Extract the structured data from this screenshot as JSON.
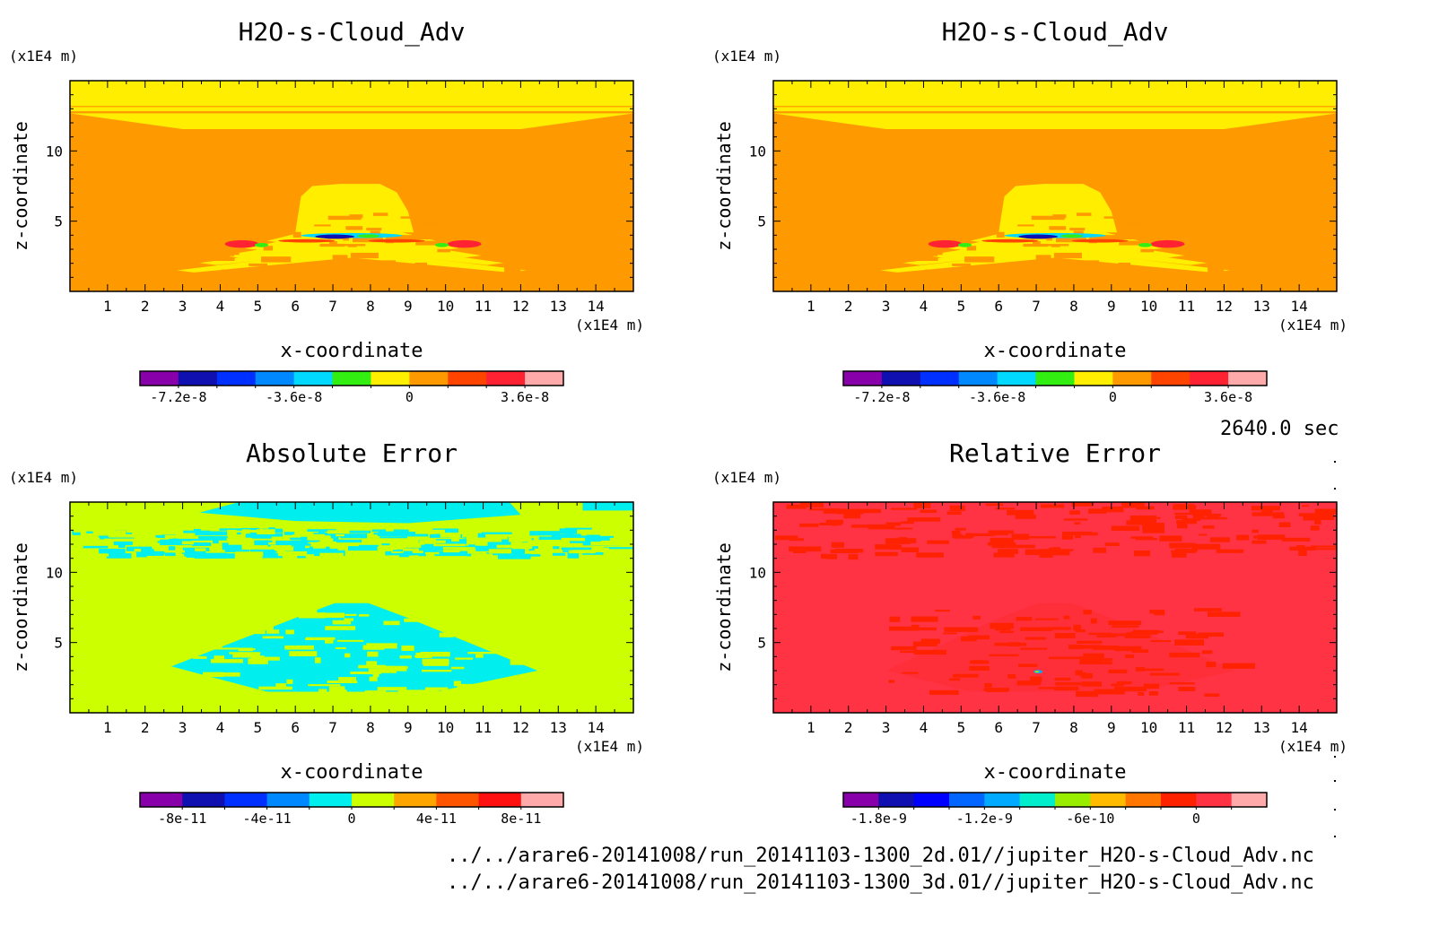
{
  "page": {
    "time_label": "2640.0 sec",
    "file_paths": [
      "../../arare6-20141008/run_20141103-1300_2d.01//jupiter_H2O-s-Cloud_Adv.nc",
      "../../arare6-20141008/run_20141103-1300_3d.01//jupiter_H2O-s-Cloud_Adv.nc"
    ]
  },
  "chart_data": [
    {
      "type": "heatmap",
      "title": "H2O-s-Cloud_Adv",
      "xlabel": "x-coordinate",
      "ylabel": "z-coordinate",
      "x_unit": "(x1E4 m)",
      "y_unit": "(x1E4 m)",
      "xlim": [
        0,
        15
      ],
      "ylim": [
        0,
        15
      ],
      "x_ticks": [
        1,
        2,
        3,
        4,
        5,
        6,
        7,
        8,
        9,
        10,
        11,
        12,
        13,
        14
      ],
      "y_ticks": [
        5,
        10
      ],
      "field": "cloud",
      "colorbar": {
        "colors": [
          "#8800aa",
          "#1010b0",
          "#0030ff",
          "#0088ff",
          "#00d8ff",
          "#33ee11",
          "#ffee00",
          "#ff9900",
          "#ff4400",
          "#ff2233",
          "#ffaaaa"
        ],
        "tick_labels": [
          "-7.2e-8",
          "-3.6e-8",
          "0",
          "3.6e-8"
        ],
        "tick_indices": [
          1,
          4,
          7,
          10
        ]
      }
    },
    {
      "type": "heatmap",
      "title": "H2O-s-Cloud_Adv",
      "xlabel": "x-coordinate",
      "ylabel": "z-coordinate",
      "x_unit": "(x1E4 m)",
      "y_unit": "(x1E4 m)",
      "xlim": [
        0,
        15
      ],
      "ylim": [
        0,
        15
      ],
      "x_ticks": [
        1,
        2,
        3,
        4,
        5,
        6,
        7,
        8,
        9,
        10,
        11,
        12,
        13,
        14
      ],
      "y_ticks": [
        5,
        10
      ],
      "field": "cloud",
      "colorbar": {
        "colors": [
          "#8800aa",
          "#1010b0",
          "#0030ff",
          "#0088ff",
          "#00d8ff",
          "#33ee11",
          "#ffee00",
          "#ff9900",
          "#ff4400",
          "#ff2233",
          "#ffaaaa"
        ],
        "tick_labels": [
          "-7.2e-8",
          "-3.6e-8",
          "0",
          "3.6e-8"
        ],
        "tick_indices": [
          1,
          4,
          7,
          10
        ]
      }
    },
    {
      "type": "heatmap",
      "title": "Absolute Error",
      "xlabel": "x-coordinate",
      "ylabel": "z-coordinate",
      "x_unit": "(x1E4 m)",
      "y_unit": "(x1E4 m)",
      "xlim": [
        0,
        15
      ],
      "ylim": [
        0,
        15
      ],
      "x_ticks": [
        1,
        2,
        3,
        4,
        5,
        6,
        7,
        8,
        9,
        10,
        11,
        12,
        13,
        14
      ],
      "y_ticks": [
        5,
        10
      ],
      "field": "abs",
      "colorbar": {
        "colors": [
          "#8800aa",
          "#1010b0",
          "#0030ff",
          "#0088ff",
          "#00eeee",
          "#ccff00",
          "#ffa500",
          "#ff5500",
          "#ff1111",
          "#ffaaaa"
        ],
        "tick_labels": [
          "-8e-11",
          "-4e-11",
          "0",
          "4e-11",
          "8e-11"
        ],
        "tick_indices": [
          1,
          3,
          5,
          7,
          9
        ]
      }
    },
    {
      "type": "heatmap",
      "title": "Relative Error",
      "xlabel": "x-coordinate",
      "ylabel": "z-coordinate",
      "x_unit": "(x1E4 m)",
      "y_unit": "(x1E4 m)",
      "xlim": [
        0,
        15
      ],
      "ylim": [
        0,
        15
      ],
      "x_ticks": [
        1,
        2,
        3,
        4,
        5,
        6,
        7,
        8,
        9,
        10,
        11,
        12,
        13,
        14
      ],
      "y_ticks": [
        5,
        10
      ],
      "field": "rel",
      "colorbar": {
        "colors": [
          "#8800aa",
          "#1010b0",
          "#0000ff",
          "#0066ff",
          "#00aaff",
          "#00eecc",
          "#99ee00",
          "#ffbb00",
          "#ff7700",
          "#ff2200",
          "#ff3344",
          "#ffaaaa"
        ],
        "tick_labels": [
          "-1.8e-9",
          "-1.2e-9",
          "-6e-10",
          "0"
        ],
        "tick_indices": [
          1,
          4,
          7,
          10
        ]
      }
    }
  ]
}
